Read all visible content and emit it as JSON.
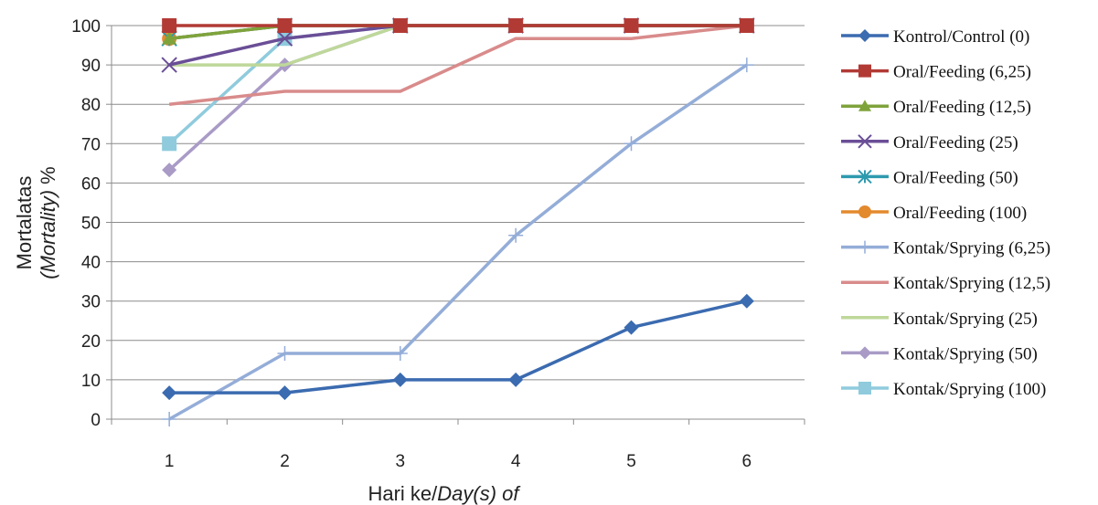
{
  "chart_data": {
    "type": "line",
    "x": [
      1,
      2,
      3,
      4,
      5,
      6
    ],
    "x_ticks": [
      "1",
      "2",
      "3",
      "4",
      "5",
      "6"
    ],
    "ylim": [
      0,
      100
    ],
    "y_ticks": [
      0,
      10,
      20,
      30,
      40,
      50,
      60,
      70,
      80,
      90,
      100
    ],
    "xlabel_plain": "Hari ke/",
    "xlabel_italic": "Day(s) of",
    "ylabel_line1": "Mortalatas",
    "ylabel_line2_italic": "(Mortality)",
    "ylabel_line2_suffix": " %",
    "grid": "horizontal",
    "legend_position": "right",
    "series": [
      {
        "name": "Kontrol/Control (0)",
        "color": "#3B6BB0",
        "marker": "diamond",
        "values": [
          6.7,
          6.7,
          10,
          10,
          23.3,
          30
        ]
      },
      {
        "name": "Oral/Feeding (6,25)",
        "color": "#B23A35",
        "marker": "square",
        "values": [
          100,
          100,
          100,
          100,
          100,
          100
        ]
      },
      {
        "name": "Oral/Feeding (12,5)",
        "color": "#7FA33B",
        "marker": "triangle",
        "values": [
          96.7,
          100,
          100,
          100,
          100,
          100
        ]
      },
      {
        "name": "Oral/Feeding (25)",
        "color": "#6A4E96",
        "marker": "x",
        "values": [
          90,
          96.7,
          100,
          100,
          100,
          100
        ]
      },
      {
        "name": "Oral/Feeding (50)",
        "color": "#2E9AAE",
        "marker": "star",
        "values": [
          96.7,
          100,
          100,
          100,
          100,
          100
        ]
      },
      {
        "name": "Oral/Feeding (100)",
        "color": "#E38A2E",
        "marker": "circle",
        "values": [
          96.7,
          100,
          100,
          100,
          100,
          100
        ]
      },
      {
        "name": "Kontak/Sprying (6,25)",
        "color": "#94ADD8",
        "marker": "plus",
        "values": [
          0,
          16.7,
          16.7,
          46.7,
          70,
          90
        ]
      },
      {
        "name": "Kontak/Sprying (12,5)",
        "color": "#D98B8B",
        "marker": "none",
        "values": [
          80,
          83.3,
          83.3,
          96.7,
          96.7,
          100
        ]
      },
      {
        "name": "Kontak/Sprying (25)",
        "color": "#BED89A",
        "marker": "none",
        "values": [
          90,
          90,
          100,
          100,
          100,
          100
        ]
      },
      {
        "name": "Kontak/Sprying (50)",
        "color": "#A99BC6",
        "marker": "diamond",
        "values": [
          63.3,
          90,
          100,
          100,
          100,
          100
        ]
      },
      {
        "name": "Kontak/Sprying (100)",
        "color": "#8FCBDD",
        "marker": "square",
        "values": [
          70,
          96.7,
          100,
          100,
          100,
          100
        ]
      }
    ]
  }
}
